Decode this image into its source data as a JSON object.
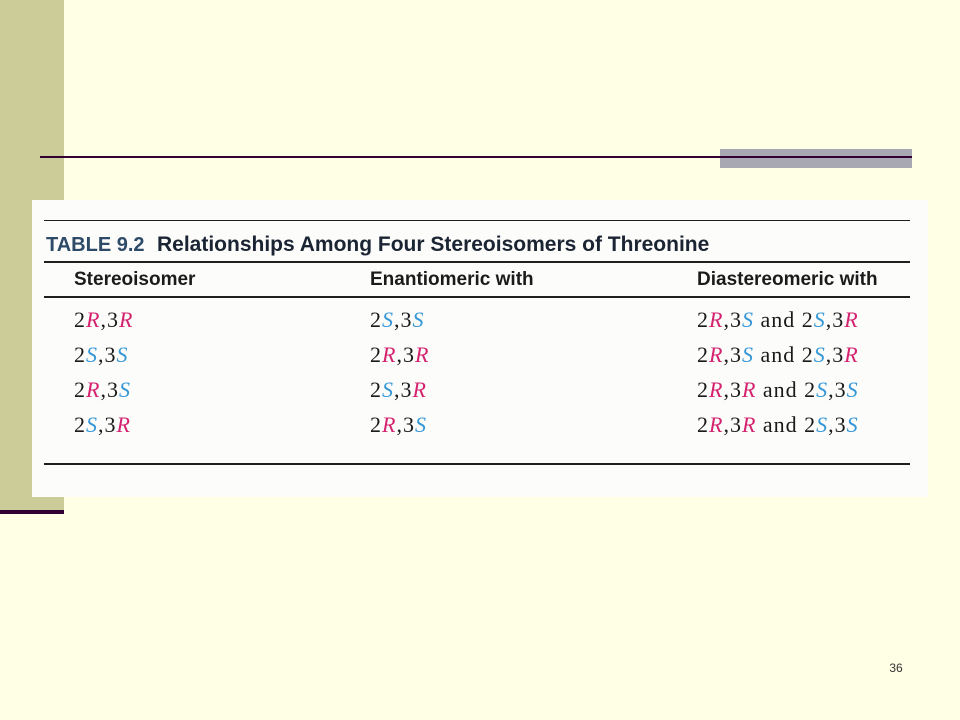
{
  "slide": {
    "page_number": "36",
    "colors": {
      "background": "#FFFFE5",
      "accent_bar": "#CCCC99",
      "rule": "#330033",
      "gray_block": "#A8A8B2"
    }
  },
  "table": {
    "label": "TABLE 9.2",
    "title": "Relationships Among Four Stereoisomers of Threonine",
    "columns": [
      "Stereoisomer",
      "Enantiomeric with",
      "Diastereomeric with"
    ],
    "rows": [
      [
        "2R,3R",
        "2S,3S",
        "2R,3S and 2S,3R"
      ],
      [
        "2S,3S",
        "2R,3R",
        "2R,3S and 2S,3R"
      ],
      [
        "2R,3S",
        "2S,3R",
        "2R,3R and 2S,3S"
      ],
      [
        "2S,3R",
        "2R,3S",
        "2R,3R and 2S,3S"
      ]
    ],
    "colors": {
      "R": "#D4226E",
      "S": "#3597D6",
      "label": "#2D4B68"
    }
  }
}
